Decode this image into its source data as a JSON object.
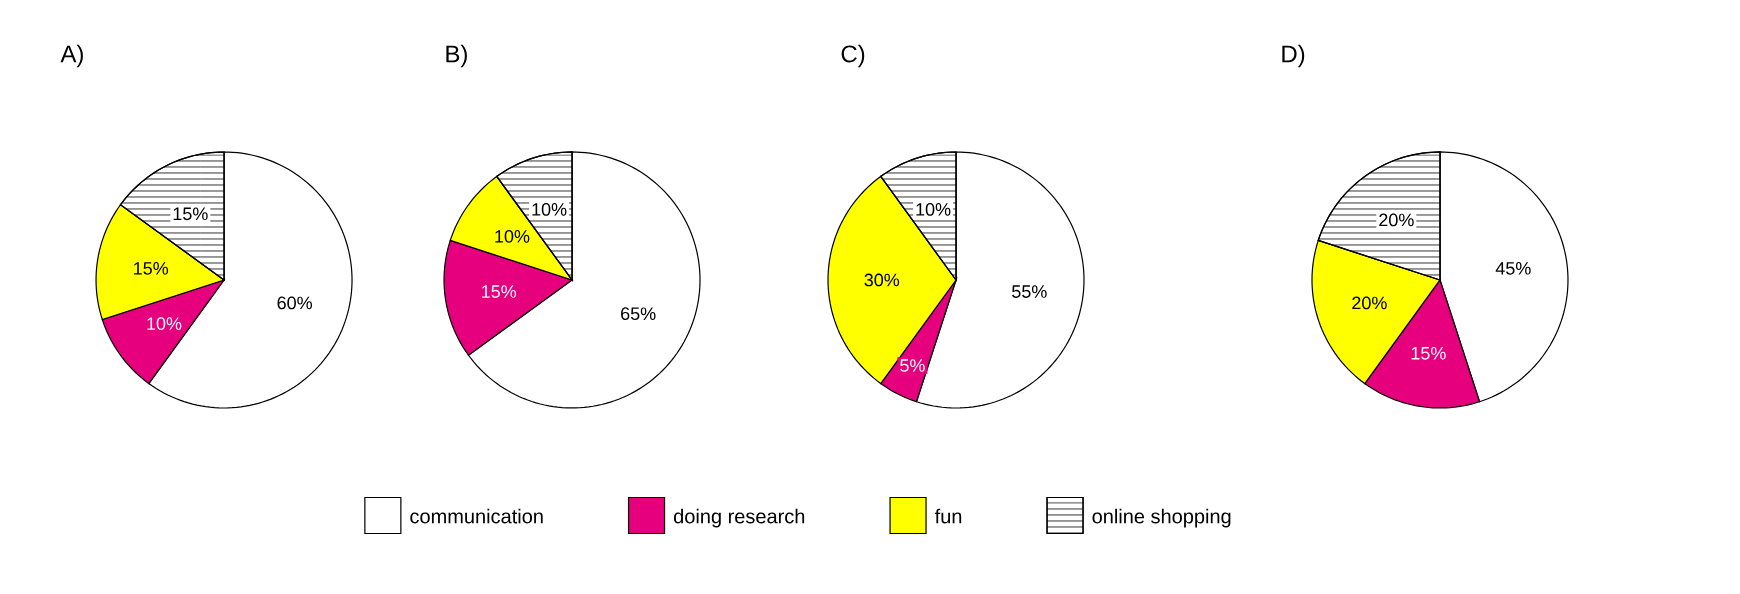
{
  "chart_data": [
    {
      "type": "pie",
      "title": "A)",
      "categories": [
        "communication",
        "doing research",
        "fun",
        "online shopping"
      ],
      "values": [
        60,
        10,
        15,
        15
      ],
      "colors": [
        "#ffffff",
        "#e6007e",
        "#ffff00",
        "#ffffff"
      ],
      "value_labels": [
        "60%",
        "10%",
        "15%",
        "15%"
      ],
      "legend": "bottom"
    },
    {
      "type": "pie",
      "title": "B)",
      "categories": [
        null,
        null,
        null,
        null
      ],
      "values": [
        65,
        15,
        10,
        10
      ],
      "colors": [
        "#ffffff",
        "#e6007e",
        "#ffff00",
        "#ffffff"
      ],
      "value_labels": [
        "65%",
        "15%",
        "10%",
        "10%"
      ]
    },
    {
      "type": "pie",
      "title": "C)",
      "categories": [
        null,
        null,
        null,
        null
      ],
      "values": [
        55,
        5,
        30,
        10
      ],
      "colors": [
        "#ffffff",
        "#e6007e",
        "#ffff00",
        "#ffffff"
      ],
      "value_labels": [
        "55%",
        "5%",
        "30%",
        "10%"
      ]
    },
    {
      "type": "pie",
      "title": "D)",
      "categories": [
        null,
        null,
        null,
        null
      ],
      "values": [
        45,
        15,
        20,
        20
      ],
      "colors": [
        "#ffffff",
        "#e6007e",
        "#ffff00",
        "#ffffff"
      ],
      "value_labels": [
        "45%",
        "15%",
        "20%",
        "20%"
      ]
    }
  ]
}
